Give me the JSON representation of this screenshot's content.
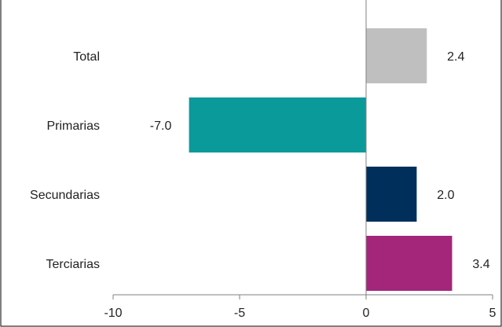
{
  "chart_data": {
    "type": "bar",
    "orientation": "horizontal",
    "categories": [
      "Total",
      "Primarias",
      "Secundarias",
      "Terciarias"
    ],
    "values": [
      2.4,
      -7.0,
      2.0,
      3.4
    ],
    "value_labels": [
      "2.4",
      "-7.0",
      "2.0",
      "3.4"
    ],
    "colors": [
      "#bfbfbf",
      "#0a9a9a",
      "#002f5b",
      "#a3267a"
    ],
    "xlim": [
      -10,
      5
    ],
    "xticks": [
      -10,
      -5,
      0,
      5
    ],
    "xtick_labels": [
      "-10",
      "-5",
      "0",
      "5"
    ],
    "grid": false,
    "title": "",
    "xlabel": "",
    "ylabel": ""
  }
}
